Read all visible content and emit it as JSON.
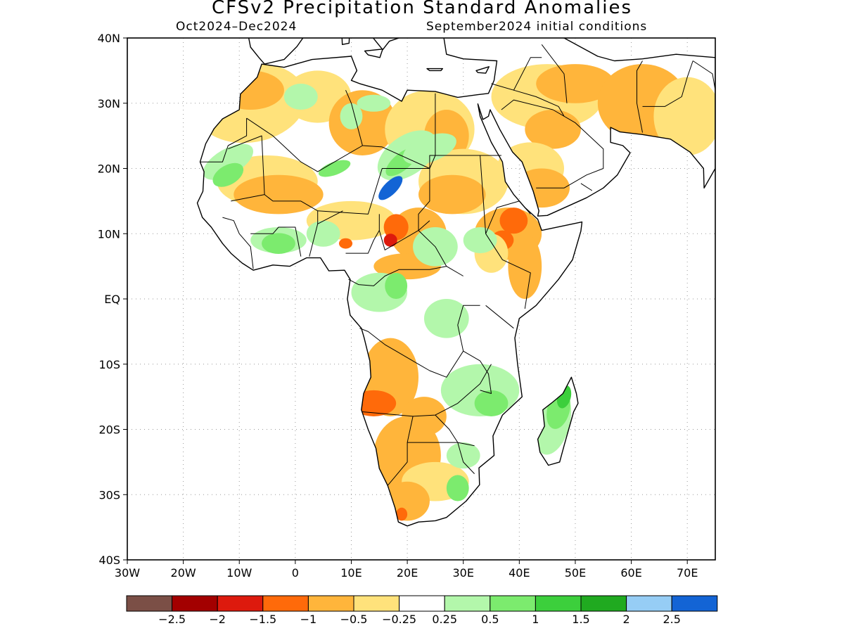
{
  "title": "CFSv2 Precipitation Standard Anomalies",
  "period": "Oct2024–Dec2024",
  "init": "September2024 initial conditions",
  "lat_labels": [
    "40N",
    "30N",
    "20N",
    "10N",
    "EQ",
    "10S",
    "20S",
    "30S",
    "40S"
  ],
  "lon_labels": [
    "30W",
    "20W",
    "10W",
    "0",
    "10E",
    "20E",
    "30E",
    "40E",
    "50E",
    "60E",
    "70E"
  ],
  "colorbar": {
    "colors": [
      "#7b4f46",
      "#a30000",
      "#dd1a0d",
      "#ff6a0a",
      "#ffb53b",
      "#ffe27b",
      "#ffffff",
      "#b3f7ab",
      "#7ceb6e",
      "#3ccf3c",
      "#20aa20",
      "#96cdf5",
      "#1364d5"
    ],
    "labels": [
      "−2.5",
      "−2",
      "−1.5",
      "−1",
      "−0.5",
      "−0.25",
      "0.25",
      "0.5",
      "1",
      "1.5",
      "2",
      "2.5"
    ]
  }
}
